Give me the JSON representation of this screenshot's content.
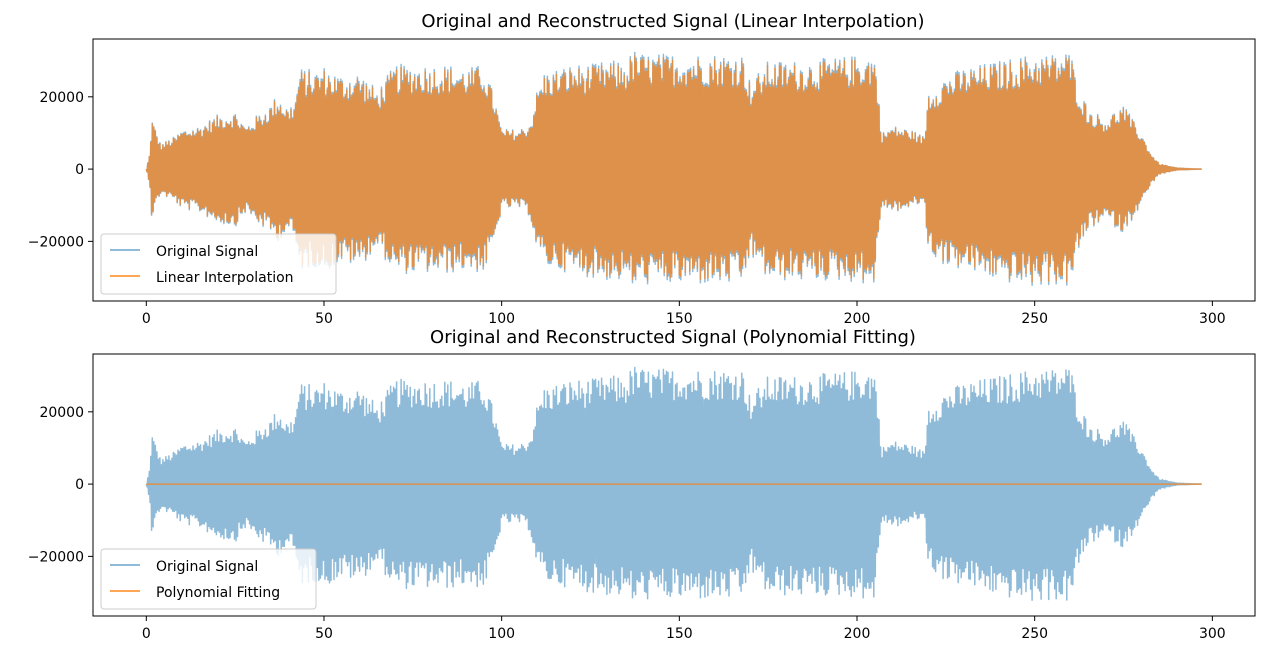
{
  "chart_data": [
    {
      "type": "line",
      "title": "Original and Reconstructed Signal (Linear Interpolation)",
      "xlabel": "",
      "ylabel": "",
      "xlim": [
        -15,
        312
      ],
      "ylim": [
        -36500,
        36000
      ],
      "xticks": [
        "0",
        "50",
        "100",
        "150",
        "200",
        "250",
        "300"
      ],
      "yticks": [
        "20000",
        "0",
        "−20000"
      ],
      "grid": false,
      "legend_position": "lower-left",
      "series": [
        {
          "name": "Original Signal",
          "color": "#1f77b4",
          "opacity": 0.5,
          "envelope": {
            "x": [
              0,
              1,
              1.5,
              4,
              8,
              10,
              15,
              20,
              25,
              28,
              30,
              35,
              37,
              40,
              42,
              43,
              48,
              50,
              55,
              60,
              65,
              70,
              75,
              80,
              85,
              90,
              95,
              98,
              100,
              105,
              108,
              110,
              112,
              120,
              125,
              130,
              135,
              137,
              140,
              150,
              160,
              168,
              170,
              175,
              185,
              195,
              205,
              207,
              210,
              215,
              219,
              220,
              225,
              230,
              240,
              250,
              255,
              260,
              262,
              265,
              270,
              275,
              278,
              280,
              283,
              285,
              290,
              297
            ],
            "max": [
              0,
              4500,
              14500,
              7000,
              9000,
              11000,
              12000,
              15000,
              16000,
              12000,
              14000,
              18000,
              21000,
              17000,
              20000,
              28000,
              27500,
              28500,
              26000,
              27000,
              22000,
              29000,
              29000,
              29000,
              29000,
              28000,
              29000,
              20000,
              11000,
              11000,
              13000,
              22000,
              27000,
              29000,
              29000,
              30000,
              30000,
              33000,
              32000,
              32000,
              32000,
              32000,
              24000,
              30000,
              30000,
              31000,
              32000,
              10000,
              12000,
              11000,
              9000,
              22000,
              26000,
              28000,
              30000,
              32000,
              32000,
              33000,
              24000,
              17000,
              14000,
              18000,
              13000,
              10000,
              4000,
              1500,
              300,
              0
            ],
            "min": [
              0,
              -4500,
              -13500,
              -7000,
              -9000,
              -11000,
              -12000,
              -15000,
              -16000,
              -12000,
              -14000,
              -18000,
              -20000,
              -17000,
              -21000,
              -28000,
              -27000,
              -28500,
              -26000,
              -27000,
              -22000,
              -29000,
              -29000,
              -29000,
              -29000,
              -28000,
              -29000,
              -21000,
              -11000,
              -11000,
              -13000,
              -23000,
              -27000,
              -29000,
              -30000,
              -31000,
              -31000,
              -33000,
              -32000,
              -32000,
              -32000,
              -32000,
              -24000,
              -31000,
              -31000,
              -31000,
              -32000,
              -10000,
              -12000,
              -11000,
              -9000,
              -23000,
              -27000,
              -28000,
              -31000,
              -33000,
              -32000,
              -33000,
              -24000,
              -17000,
              -14000,
              -18000,
              -13000,
              -10000,
              -4000,
              -1500,
              -300,
              0
            ]
          }
        },
        {
          "name": "Linear Interpolation",
          "color": "#ff7f0e",
          "opacity": 0.7,
          "scale_of_original": 0.97
        }
      ]
    },
    {
      "type": "line",
      "title": "Original and Reconstructed Signal (Polynomial Fitting)",
      "xlabel": "",
      "ylabel": "",
      "xlim": [
        -15,
        312
      ],
      "ylim": [
        -36500,
        36000
      ],
      "xticks": [
        "0",
        "50",
        "100",
        "150",
        "200",
        "250",
        "300"
      ],
      "yticks": [
        "20000",
        "0",
        "−20000"
      ],
      "grid": false,
      "legend_position": "lower-left",
      "series": [
        {
          "name": "Original Signal",
          "color": "#1f77b4",
          "opacity": 0.5,
          "same_as_chart": 0
        },
        {
          "name": "Polynomial Fitting",
          "color": "#ff7f0e",
          "opacity": 0.7,
          "x": [
            0,
            297
          ],
          "y": [
            0,
            0
          ]
        }
      ]
    }
  ]
}
